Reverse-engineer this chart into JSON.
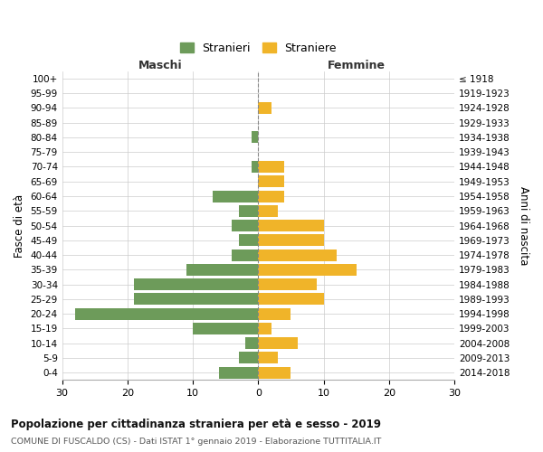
{
  "age_groups": [
    "0-4",
    "5-9",
    "10-14",
    "15-19",
    "20-24",
    "25-29",
    "30-34",
    "35-39",
    "40-44",
    "45-49",
    "50-54",
    "55-59",
    "60-64",
    "65-69",
    "70-74",
    "75-79",
    "80-84",
    "85-89",
    "90-94",
    "95-99",
    "100+"
  ],
  "birth_years": [
    "2014-2018",
    "2009-2013",
    "2004-2008",
    "1999-2003",
    "1994-1998",
    "1989-1993",
    "1984-1988",
    "1979-1983",
    "1974-1978",
    "1969-1973",
    "1964-1968",
    "1959-1963",
    "1954-1958",
    "1949-1953",
    "1944-1948",
    "1939-1943",
    "1934-1938",
    "1929-1933",
    "1924-1928",
    "1919-1923",
    "≤ 1918"
  ],
  "maschi": [
    6,
    3,
    2,
    10,
    28,
    19,
    19,
    11,
    4,
    3,
    4,
    3,
    7,
    0,
    1,
    0,
    1,
    0,
    0,
    0,
    0
  ],
  "femmine": [
    5,
    3,
    6,
    2,
    5,
    10,
    9,
    15,
    12,
    10,
    10,
    3,
    4,
    4,
    4,
    0,
    0,
    0,
    2,
    0,
    0
  ],
  "maschi_color": "#6d9b5a",
  "femmine_color": "#f0b429",
  "title": "Popolazione per cittadinanza straniera per età e sesso - 2019",
  "subtitle": "COMUNE DI FUSCALDO (CS) - Dati ISTAT 1° gennaio 2019 - Elaborazione TUTTITALIA.IT",
  "ylabel_left": "Fasce di età",
  "ylabel_right": "Anni di nascita",
  "xlabel_left": "Maschi",
  "xlabel_right": "Femmine",
  "legend_maschi": "Stranieri",
  "legend_femmine": "Straniere",
  "xlim": 30,
  "background_color": "#ffffff",
  "grid_color": "#cccccc"
}
